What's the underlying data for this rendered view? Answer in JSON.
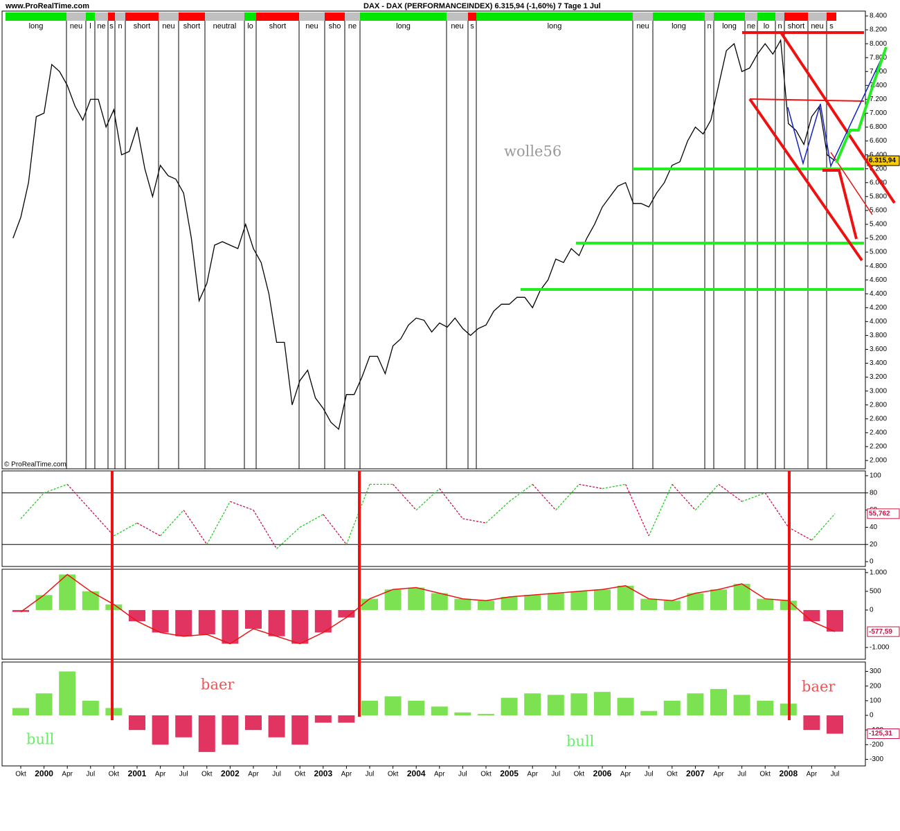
{
  "header": {
    "site": "www.ProRealTime.com",
    "title": "DAX - DAX (PERFORMANCEINDEX)    6.315,94 (-1,60%)    7 Tage  1 Jul",
    "copyright": "© ProRealTime.com"
  },
  "regimes": [
    {
      "label": "long",
      "color": "#00e600"
    },
    {
      "label": "neu",
      "color": "#c0c0c0"
    },
    {
      "label": "l",
      "color": "#00e600"
    },
    {
      "label": "ne",
      "color": "#c0c0c0"
    },
    {
      "label": "s",
      "color": "#ff0000"
    },
    {
      "label": "n",
      "color": "#c0c0c0"
    },
    {
      "label": "short",
      "color": "#ff0000"
    },
    {
      "label": "neu",
      "color": "#c0c0c0"
    },
    {
      "label": "short",
      "color": "#ff0000"
    },
    {
      "label": "neutral",
      "color": "#c0c0c0"
    },
    {
      "label": "lo",
      "color": "#00e600"
    },
    {
      "label": "short",
      "color": "#ff0000"
    },
    {
      "label": "neu",
      "color": "#c0c0c0"
    },
    {
      "label": "sho",
      "color": "#ff0000"
    },
    {
      "label": "ne",
      "color": "#c0c0c0"
    },
    {
      "label": "long",
      "color": "#00e600"
    },
    {
      "label": "neu",
      "color": "#c0c0c0"
    },
    {
      "label": "s",
      "color": "#ff0000"
    },
    {
      "label": "long",
      "color": "#00e600"
    },
    {
      "label": "neu",
      "color": "#c0c0c0"
    },
    {
      "label": "long",
      "color": "#00e600"
    },
    {
      "label": "n",
      "color": "#c0c0c0"
    },
    {
      "label": "long",
      "color": "#00e600"
    },
    {
      "label": "ne",
      "color": "#c0c0c0"
    },
    {
      "label": "lo",
      "color": "#00e600"
    },
    {
      "label": "n",
      "color": "#c0c0c0"
    },
    {
      "label": "short",
      "color": "#ff0000"
    },
    {
      "label": "neu",
      "color": "#c0c0c0"
    },
    {
      "label": "s",
      "color": "#ff0000"
    }
  ],
  "annotations": {
    "author": "wolle56",
    "bear": "baer",
    "bull": "bull"
  },
  "chart_data": [
    {
      "type": "line",
      "color": "#000000",
      "values": [
        5200,
        5500,
        6000,
        6950,
        7000,
        7700,
        7600,
        7400,
        7100,
        6900,
        7200,
        7200,
        6800,
        7050,
        6400,
        6450,
        6800,
        6200,
        5800,
        6250,
        6100,
        6050,
        5850,
        5200,
        4300,
        4550,
        5100,
        5150,
        5100,
        5050,
        5400,
        5050,
        4850,
        4400,
        3700,
        3700,
        2800,
        3150,
        3300,
        2900,
        2750,
        2550,
        2450,
        2950,
        2950,
        3200,
        3500,
        3500,
        3250,
        3650,
        3750,
        3950,
        4050,
        4020,
        3850,
        3980,
        3920,
        4050,
        3900,
        3800,
        3900,
        3950,
        4150,
        4250,
        4250,
        4350,
        4350,
        4200,
        4450,
        4600,
        4900,
        4850,
        5050,
        4950,
        5200,
        5400,
        5650,
        5800,
        5950,
        6000,
        5700,
        5700,
        5650,
        5850,
        6000,
        6250,
        6300,
        6600,
        6800,
        6700,
        6900,
        7400,
        7900,
        8000,
        7600,
        7650,
        7850,
        8000,
        7850,
        8050,
        6850,
        6750,
        6550,
        6950,
        7100,
        6400,
        6315.94
      ],
      "last_value": {
        "value": 6315.94,
        "label": "6.315,94"
      },
      "ylim": [
        1880,
        8470
      ],
      "yticks": [
        {
          "value": 2000,
          "label": "2.000"
        },
        {
          "value": 2200,
          "label": "2.200"
        },
        {
          "value": 2400,
          "label": "2.400"
        },
        {
          "value": 2600,
          "label": "2.600"
        },
        {
          "value": 2800,
          "label": "2.800"
        },
        {
          "value": 3000,
          "label": "3.000"
        },
        {
          "value": 3200,
          "label": "3.200"
        },
        {
          "value": 3400,
          "label": "3.400"
        },
        {
          "value": 3600,
          "label": "3.600"
        },
        {
          "value": 3800,
          "label": "3.800"
        },
        {
          "value": 4000,
          "label": "4.000"
        },
        {
          "value": 4200,
          "label": "4.200"
        },
        {
          "value": 4400,
          "label": "4.400"
        },
        {
          "value": 4600,
          "label": "4.600"
        },
        {
          "value": 4800,
          "label": "4.800"
        },
        {
          "value": 5000,
          "label": "5.000"
        },
        {
          "value": 5200,
          "label": "5.200"
        },
        {
          "value": 5400,
          "label": "5.400"
        },
        {
          "value": 5600,
          "label": "5.600"
        },
        {
          "value": 5800,
          "label": "5.800"
        },
        {
          "value": 6000,
          "label": "6.000"
        },
        {
          "value": 6200,
          "label": "6.200"
        },
        {
          "value": 6400,
          "label": "6.400"
        },
        {
          "value": 6600,
          "label": "6.600"
        },
        {
          "value": 6800,
          "label": "6.800"
        },
        {
          "value": 7000,
          "label": "7.000"
        },
        {
          "value": 7200,
          "label": "7.200"
        },
        {
          "value": 7400,
          "label": "7.400"
        },
        {
          "value": 7600,
          "label": "7.600"
        },
        {
          "value": 7800,
          "label": "7.800"
        },
        {
          "value": 8000,
          "label": "8.000"
        },
        {
          "value": 8200,
          "label": "8.200"
        },
        {
          "value": 8400,
          "label": "8.400"
        }
      ]
    },
    {
      "type": "stochastic",
      "values": [
        50,
        80,
        90,
        60,
        30,
        45,
        30,
        60,
        20,
        70,
        60,
        15,
        40,
        55,
        20,
        90,
        90,
        60,
        85,
        50,
        45,
        70,
        90,
        60,
        90,
        85,
        90,
        30,
        90,
        60,
        90,
        70,
        80,
        40,
        25,
        55.762
      ],
      "last_value": {
        "value": 55.762,
        "label": "55,762"
      },
      "ylim": [
        -5.6,
        105.6
      ],
      "yticks": [
        0,
        20,
        40,
        60,
        80,
        100
      ],
      "reference_lines": [
        20,
        80
      ]
    },
    {
      "type": "macd",
      "color_positive": "#66dd33",
      "color_negative": "#dd1144",
      "line_color": "#ee1111",
      "values": [
        -50,
        400,
        950,
        500,
        150,
        -300,
        -600,
        -700,
        -650,
        -900,
        -500,
        -700,
        -900,
        -600,
        -200,
        300,
        550,
        600,
        450,
        300,
        250,
        350,
        400,
        450,
        500,
        550,
        650,
        300,
        250,
        450,
        550,
        700,
        300,
        250,
        -300,
        -577.59
      ],
      "last_value": {
        "value": -577.59,
        "label": "-577,59"
      },
      "ylim": [
        -1315,
        1090
      ],
      "yticks": [
        {
          "value": 1000,
          "label": "1.000"
        },
        500,
        0,
        {
          "value": -1000,
          "label": "-1.000"
        }
      ]
    },
    {
      "type": "bar",
      "color_positive": "#66dd33",
      "color_negative": "#dd1144",
      "categories": [
        "Okt",
        "2000",
        "Apr",
        "Jul",
        "Okt",
        "2001",
        "Apr",
        "Jul",
        "Okt",
        "2002",
        "Apr",
        "Jul",
        "Okt",
        "2003",
        "Apr",
        "Jul",
        "Okt",
        "2004",
        "Apr",
        "Jul",
        "Okt",
        "2005",
        "Apr",
        "Jul",
        "Okt",
        "2006",
        "Apr",
        "Jul",
        "Okt",
        "2007",
        "Apr",
        "Jul",
        "Okt",
        "2008",
        "Apr",
        "Jul"
      ],
      "values": [
        50,
        150,
        300,
        100,
        50,
        -100,
        -200,
        -150,
        -250,
        -200,
        -100,
        -150,
        -200,
        -50,
        -50,
        100,
        130,
        100,
        60,
        20,
        10,
        120,
        150,
        140,
        150,
        160,
        120,
        30,
        100,
        150,
        180,
        140,
        100,
        80,
        -100,
        -125.31
      ],
      "last_value": {
        "value": -125.31,
        "label": "-125,31"
      },
      "ylim": [
        -345,
        364
      ],
      "yticks": [
        300,
        200,
        100,
        0,
        -100,
        -200,
        -300
      ]
    }
  ]
}
